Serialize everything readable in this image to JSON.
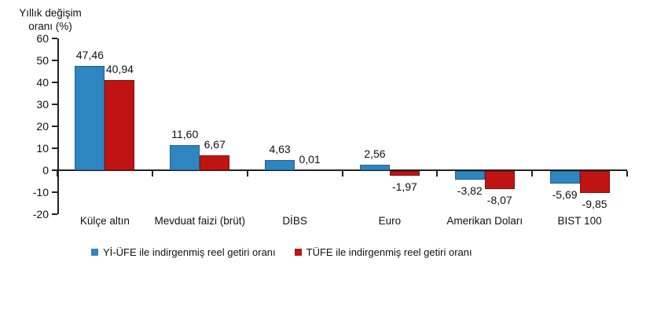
{
  "title": {
    "line1": "Yıllık değişim",
    "line2": "oranı (%)"
  },
  "colors": {
    "series_blue": "#2e86c1",
    "series_red": "#c01414",
    "axis": "#222222",
    "text": "#111111",
    "background": "#ffffff"
  },
  "chart_data": {
    "type": "bar",
    "title": "Yıllık değişim oranı (%)",
    "ylabel": "Yıllık değişim oranı (%)",
    "xlabel": "",
    "categories": [
      "Külçe altın",
      "Mevduat faizi (brüt)",
      "DİBS",
      "Euro",
      "Amerikan Doları",
      "BIST 100"
    ],
    "series": [
      {
        "name": "Yİ-ÜFE ile indirgenmiş reel getiri oranı",
        "color": "#2e86c1",
        "values": [
          47.46,
          11.6,
          4.63,
          2.56,
          -3.82,
          -5.69
        ],
        "value_labels": [
          "47,46",
          "11,60",
          "4,63",
          "2,56",
          "-3,82",
          "-5,69"
        ]
      },
      {
        "name": "TÜFE ile indirgenmiş reel getiri oranı",
        "color": "#c01414",
        "values": [
          40.94,
          6.67,
          0.01,
          -1.97,
          -8.07,
          -9.85
        ],
        "value_labels": [
          "40,94",
          "6,67",
          "0,01",
          "-1,97",
          "-8,07",
          "-9,85"
        ]
      }
    ],
    "ylim": [
      -20,
      60
    ],
    "yticks": [
      60,
      50,
      40,
      30,
      20,
      10,
      0,
      -10,
      -20
    ],
    "grid": false,
    "legend_position": "bottom",
    "decimal_separator": ","
  }
}
